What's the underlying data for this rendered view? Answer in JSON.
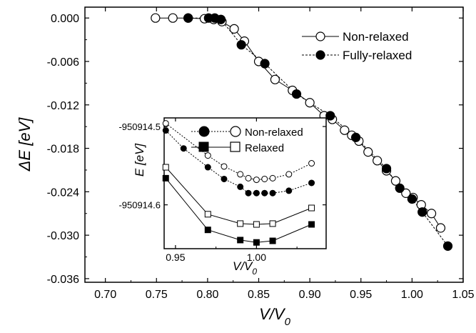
{
  "chart_data": [
    {
      "type": "line",
      "xlabel": "V/V",
      "xlabel_sub": "0",
      "ylabel": "ΔE [eV]",
      "xlim": [
        0.68,
        1.05
      ],
      "ylim": [
        -0.0365,
        0.0015
      ],
      "xticks": [
        "0.70",
        "0.75",
        "0.80",
        "0.85",
        "0.90",
        "0.95",
        "1.00",
        "1.05"
      ],
      "xtick_values": [
        0.7,
        0.75,
        0.8,
        0.85,
        0.9,
        0.95,
        1.0,
        1.05
      ],
      "yticks": [
        "0.000",
        "-0.006",
        "-0.012",
        "-0.018",
        "-0.024",
        "-0.030",
        "-0.036"
      ],
      "ytick_values": [
        0.0,
        -0.006,
        -0.012,
        -0.018,
        -0.024,
        -0.03,
        -0.036
      ],
      "legend_position": "top-right",
      "series": [
        {
          "name": "Non-relaxed",
          "marker": "open-circle",
          "line": "solid",
          "x": [
            0.749,
            0.766,
            0.781,
            0.797,
            0.806,
            0.814,
            0.826,
            0.836,
            0.85,
            0.866,
            0.883,
            0.9,
            0.914,
            0.922,
            0.934,
            0.941,
            0.948,
            0.957,
            0.966,
            0.975,
            0.984,
            0.994,
            1.001,
            1.009,
            1.019,
            1.028
          ],
          "y": [
            0.0,
            0.0,
            0.0,
            -0.0001,
            -0.0002,
            -0.0005,
            -0.0015,
            -0.0032,
            -0.006,
            -0.0085,
            -0.01,
            -0.0117,
            -0.0135,
            -0.014,
            -0.0155,
            -0.0162,
            -0.017,
            -0.0185,
            -0.0197,
            -0.0211,
            -0.0225,
            -0.0242,
            -0.0248,
            -0.0258,
            -0.027,
            -0.029
          ]
        },
        {
          "name": "Fully-relaxed",
          "marker": "filled-circle",
          "line": "dashed",
          "x": [
            0.781,
            0.801,
            0.807,
            0.813,
            0.833,
            0.856,
            0.887,
            0.92,
            0.945,
            0.975,
            0.988,
            1.0,
            1.01,
            1.035
          ],
          "y": [
            0.0,
            0.0,
            0.0,
            -0.0002,
            -0.0037,
            -0.0063,
            -0.0105,
            -0.0135,
            -0.0165,
            -0.0208,
            -0.0235,
            -0.025,
            -0.0268,
            -0.0315
          ]
        }
      ]
    },
    {
      "type": "line",
      "inset": true,
      "xlabel": "V/V",
      "xlabel_sub": "0",
      "ylabel": "E [eV]",
      "xlim": [
        0.943,
        1.043
      ],
      "ylim": [
        -950914.656,
        -950914.489
      ],
      "xticks": [
        "0.95",
        "1.00"
      ],
      "xtick_values": [
        0.95,
        1.0
      ],
      "yticks": [
        "-950914.5",
        "-950914.6"
      ],
      "ytick_values": [
        -950914.5,
        -950914.6
      ],
      "legend_position": "top-right",
      "series": [
        {
          "name": "Non-relaxed",
          "subseries": [
            {
              "marker": "open-circle",
              "line": "dashed",
              "x": [
                0.944,
                0.97,
                0.98,
                0.99,
                0.995,
                1.0,
                1.005,
                1.01,
                1.02,
                1.034
              ],
              "y": [
                -950914.496,
                -950914.537,
                -950914.551,
                -950914.561,
                -950914.566,
                -950914.568,
                -950914.567,
                -950914.566,
                -950914.561,
                -950914.547
              ]
            },
            {
              "marker": "filled-circle",
              "line": "dashed",
              "x": [
                0.944,
                0.955,
                0.97,
                0.98,
                0.99,
                0.995,
                1.0,
                1.005,
                1.01,
                1.02,
                1.034
              ],
              "y": [
                -950914.505,
                -950914.528,
                -950914.552,
                -950914.567,
                -950914.577,
                -950914.585,
                -950914.585,
                -950914.585,
                -950914.585,
                -950914.582,
                -950914.572
              ]
            }
          ]
        },
        {
          "name": "Relaxed",
          "subseries": [
            {
              "marker": "open-square",
              "line": "solid",
              "x": [
                0.944,
                0.97,
                0.99,
                1.0,
                1.01,
                1.034
              ],
              "y": [
                -950914.552,
                -950914.612,
                -950914.624,
                -950914.625,
                -950914.624,
                -950914.604
              ]
            },
            {
              "marker": "filled-square",
              "line": "solid",
              "x": [
                0.944,
                0.97,
                0.99,
                1.0,
                1.01,
                1.034
              ],
              "y": [
                -950914.566,
                -950914.632,
                -950914.645,
                -950914.648,
                -950914.646,
                -950914.625
              ]
            }
          ]
        }
      ]
    }
  ]
}
